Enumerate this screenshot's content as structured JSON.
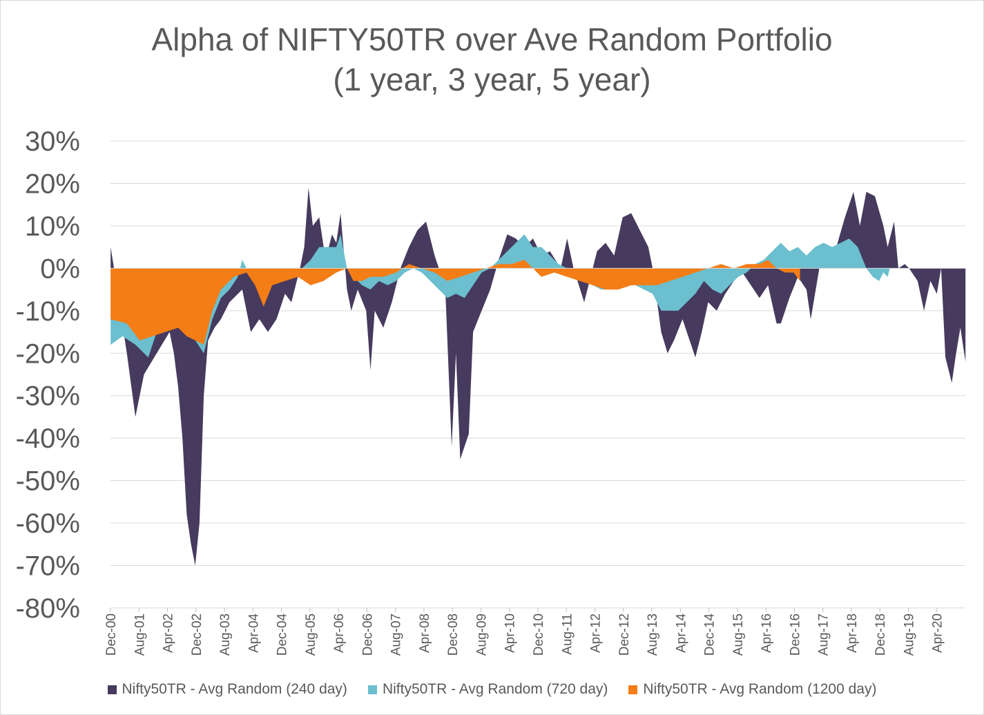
{
  "chart_data": {
    "type": "area",
    "title": "Alpha of NIFTY50TR over Ave Random Portfolio",
    "subtitle": "(1 year, 3 year, 5 year)",
    "xlabel": "",
    "ylabel": "",
    "ylim": [
      -0.8,
      0.3
    ],
    "yticks": [
      0.3,
      0.2,
      0.1,
      0.0,
      -0.1,
      -0.2,
      -0.3,
      -0.4,
      -0.5,
      -0.6,
      -0.7,
      -0.8
    ],
    "ytick_labels": [
      "30%",
      "20%",
      "10%",
      "0%",
      "-10%",
      "-20%",
      "-30%",
      "-40%",
      "-50%",
      "-60%",
      "-70%",
      "-80%"
    ],
    "x_range": [
      2000.917,
      2020.917
    ],
    "x_tick_labels": [
      "Dec-00",
      "Aug-01",
      "Apr-02",
      "Dec-02",
      "Aug-03",
      "Apr-04",
      "Dec-04",
      "Aug-05",
      "Apr-06",
      "Dec-06",
      "Aug-07",
      "Apr-08",
      "Dec-08",
      "Aug-09",
      "Apr-10",
      "Dec-10",
      "Aug-11",
      "Apr-12",
      "Dec-12",
      "Aug-13",
      "Apr-14",
      "Dec-14",
      "Aug-15",
      "Apr-16",
      "Dec-16",
      "Aug-17",
      "Apr-18",
      "Dec-18",
      "Aug-19",
      "Apr-20"
    ],
    "grid": true,
    "legend_position": "bottom",
    "series": [
      {
        "name": "Nifty50TR - Avg Random (240 day)",
        "color": "#463a5e",
        "points": [
          [
            2000.92,
            0.05
          ],
          [
            2001.0,
            0.0
          ],
          [
            2001.3,
            -0.2
          ],
          [
            2001.5,
            -0.35
          ],
          [
            2001.6,
            -0.3
          ],
          [
            2001.7,
            -0.25
          ],
          [
            2002.0,
            -0.2
          ],
          [
            2002.3,
            -0.15
          ],
          [
            2002.4,
            -0.2
          ],
          [
            2002.5,
            -0.28
          ],
          [
            2002.6,
            -0.4
          ],
          [
            2002.7,
            -0.58
          ],
          [
            2002.8,
            -0.65
          ],
          [
            2002.9,
            -0.7
          ],
          [
            2003.0,
            -0.6
          ],
          [
            2003.1,
            -0.3
          ],
          [
            2003.2,
            -0.17
          ],
          [
            2003.35,
            -0.14
          ],
          [
            2003.5,
            -0.12
          ],
          [
            2003.7,
            -0.08
          ],
          [
            2004.0,
            -0.05
          ],
          [
            2004.2,
            -0.15
          ],
          [
            2004.4,
            -0.12
          ],
          [
            2004.6,
            -0.15
          ],
          [
            2004.8,
            -0.12
          ],
          [
            2005.0,
            -0.06
          ],
          [
            2005.15,
            -0.08
          ],
          [
            2005.35,
            0.0
          ],
          [
            2005.45,
            0.05
          ],
          [
            2005.55,
            0.19
          ],
          [
            2005.65,
            0.1
          ],
          [
            2005.8,
            0.12
          ],
          [
            2005.95,
            0.02
          ],
          [
            2006.1,
            0.08
          ],
          [
            2006.2,
            0.06
          ],
          [
            2006.3,
            0.13
          ],
          [
            2006.45,
            -0.05
          ],
          [
            2006.55,
            -0.1
          ],
          [
            2006.7,
            -0.05
          ],
          [
            2006.9,
            -0.1
          ],
          [
            2007.0,
            -0.24
          ],
          [
            2007.1,
            -0.1
          ],
          [
            2007.3,
            -0.14
          ],
          [
            2007.5,
            -0.08
          ],
          [
            2007.7,
            0.0
          ],
          [
            2007.9,
            0.05
          ],
          [
            2008.1,
            0.09
          ],
          [
            2008.3,
            0.11
          ],
          [
            2008.5,
            0.03
          ],
          [
            2008.6,
            0.0
          ],
          [
            2008.75,
            -0.05
          ],
          [
            2008.9,
            -0.42
          ],
          [
            2009.0,
            -0.2
          ],
          [
            2009.1,
            -0.45
          ],
          [
            2009.3,
            -0.39
          ],
          [
            2009.4,
            -0.15
          ],
          [
            2009.6,
            -0.1
          ],
          [
            2009.8,
            -0.05
          ],
          [
            2010.0,
            0.02
          ],
          [
            2010.2,
            0.08
          ],
          [
            2010.4,
            0.07
          ],
          [
            2010.6,
            0.05
          ],
          [
            2010.8,
            0.07
          ],
          [
            2011.0,
            0.03
          ],
          [
            2011.2,
            0.04
          ],
          [
            2011.45,
            0.0
          ],
          [
            2011.6,
            0.07
          ],
          [
            2011.75,
            0.0
          ],
          [
            2012.0,
            -0.08
          ],
          [
            2012.2,
            0.0
          ],
          [
            2012.3,
            0.04
          ],
          [
            2012.5,
            0.06
          ],
          [
            2012.7,
            0.03
          ],
          [
            2012.9,
            0.12
          ],
          [
            2013.1,
            0.13
          ],
          [
            2013.3,
            0.09
          ],
          [
            2013.5,
            0.05
          ],
          [
            2013.6,
            0.0
          ],
          [
            2013.8,
            -0.15
          ],
          [
            2013.95,
            -0.2
          ],
          [
            2014.1,
            -0.17
          ],
          [
            2014.3,
            -0.12
          ],
          [
            2014.5,
            -0.18
          ],
          [
            2014.6,
            -0.21
          ],
          [
            2014.75,
            -0.15
          ],
          [
            2014.9,
            -0.08
          ],
          [
            2015.1,
            -0.1
          ],
          [
            2015.3,
            -0.06
          ],
          [
            2015.5,
            -0.03
          ],
          [
            2015.7,
            -0.01
          ],
          [
            2015.9,
            -0.04
          ],
          [
            2016.1,
            -0.07
          ],
          [
            2016.3,
            -0.04
          ],
          [
            2016.5,
            -0.13
          ],
          [
            2016.6,
            -0.13
          ],
          [
            2016.8,
            -0.07
          ],
          [
            2017.0,
            -0.02
          ],
          [
            2017.2,
            -0.05
          ],
          [
            2017.3,
            -0.12
          ],
          [
            2017.5,
            0.0
          ],
          [
            2017.7,
            0.03
          ],
          [
            2017.9,
            0.05
          ],
          [
            2018.1,
            0.12
          ],
          [
            2018.3,
            0.18
          ],
          [
            2018.45,
            0.1
          ],
          [
            2018.6,
            0.18
          ],
          [
            2018.8,
            0.17
          ],
          [
            2019.0,
            0.1
          ],
          [
            2019.1,
            0.05
          ],
          [
            2019.25,
            0.11
          ],
          [
            2019.35,
            0.0
          ],
          [
            2019.5,
            0.01
          ],
          [
            2019.6,
            0.0
          ],
          [
            2019.8,
            -0.03
          ],
          [
            2019.95,
            -0.1
          ],
          [
            2020.1,
            -0.03
          ],
          [
            2020.25,
            -0.06
          ],
          [
            2020.35,
            0.0
          ],
          [
            2020.45,
            -0.21
          ],
          [
            2020.6,
            -0.27
          ],
          [
            2020.7,
            -0.2
          ],
          [
            2020.8,
            -0.14
          ],
          [
            2020.92,
            -0.22
          ]
        ]
      },
      {
        "name": "Nifty50TR - Avg Random (720 day)",
        "color": "#6bbfce",
        "points": [
          [
            2000.92,
            -0.18
          ],
          [
            2001.2,
            -0.16
          ],
          [
            2001.5,
            -0.18
          ],
          [
            2001.8,
            -0.21
          ],
          [
            2002.0,
            -0.15
          ],
          [
            2002.3,
            -0.08
          ],
          [
            2002.5,
            -0.12
          ],
          [
            2002.7,
            -0.15
          ],
          [
            2002.9,
            -0.17
          ],
          [
            2003.1,
            -0.2
          ],
          [
            2003.3,
            -0.12
          ],
          [
            2003.5,
            -0.07
          ],
          [
            2003.7,
            -0.05
          ],
          [
            2003.9,
            -0.02
          ],
          [
            2004.0,
            0.02
          ],
          [
            2004.1,
            0.0
          ],
          [
            2004.3,
            -0.02
          ],
          [
            2004.5,
            -0.02
          ],
          [
            2004.7,
            -0.03
          ],
          [
            2005.0,
            -0.03
          ],
          [
            2005.2,
            0.0
          ],
          [
            2005.4,
            0.0
          ],
          [
            2005.6,
            0.02
          ],
          [
            2005.8,
            0.05
          ],
          [
            2006.0,
            0.05
          ],
          [
            2006.2,
            0.05
          ],
          [
            2006.3,
            0.08
          ],
          [
            2006.45,
            0.0
          ],
          [
            2006.6,
            -0.02
          ],
          [
            2006.8,
            -0.04
          ],
          [
            2007.0,
            -0.05
          ],
          [
            2007.2,
            -0.03
          ],
          [
            2007.4,
            -0.04
          ],
          [
            2007.6,
            -0.03
          ],
          [
            2007.8,
            -0.01
          ],
          [
            2008.0,
            0.0
          ],
          [
            2008.2,
            -0.01
          ],
          [
            2008.4,
            -0.03
          ],
          [
            2008.6,
            -0.05
          ],
          [
            2008.8,
            -0.07
          ],
          [
            2009.0,
            -0.06
          ],
          [
            2009.2,
            -0.07
          ],
          [
            2009.4,
            -0.04
          ],
          [
            2009.6,
            -0.01
          ],
          [
            2009.8,
            0.0
          ],
          [
            2010.0,
            0.02
          ],
          [
            2010.2,
            0.04
          ],
          [
            2010.4,
            0.06
          ],
          [
            2010.6,
            0.08
          ],
          [
            2010.8,
            0.05
          ],
          [
            2011.0,
            0.05
          ],
          [
            2011.2,
            0.03
          ],
          [
            2011.4,
            0.01
          ],
          [
            2011.6,
            0.0
          ],
          [
            2011.8,
            -0.02
          ],
          [
            2012.0,
            -0.03
          ],
          [
            2012.2,
            -0.04
          ],
          [
            2012.4,
            -0.05
          ],
          [
            2012.6,
            -0.05
          ],
          [
            2012.8,
            -0.04
          ],
          [
            2013.0,
            -0.04
          ],
          [
            2013.2,
            -0.04
          ],
          [
            2013.4,
            -0.05
          ],
          [
            2013.6,
            -0.06
          ],
          [
            2013.8,
            -0.1
          ],
          [
            2014.0,
            -0.1
          ],
          [
            2014.2,
            -0.1
          ],
          [
            2014.4,
            -0.08
          ],
          [
            2014.6,
            -0.06
          ],
          [
            2014.8,
            -0.03
          ],
          [
            2015.0,
            -0.05
          ],
          [
            2015.2,
            -0.06
          ],
          [
            2015.4,
            -0.04
          ],
          [
            2015.6,
            -0.02
          ],
          [
            2015.8,
            -0.01
          ],
          [
            2016.0,
            0.01
          ],
          [
            2016.2,
            0.02
          ],
          [
            2016.4,
            0.04
          ],
          [
            2016.6,
            0.06
          ],
          [
            2016.8,
            0.04
          ],
          [
            2017.0,
            0.05
          ],
          [
            2017.2,
            0.03
          ],
          [
            2017.4,
            0.05
          ],
          [
            2017.6,
            0.06
          ],
          [
            2017.8,
            0.05
          ],
          [
            2018.0,
            0.06
          ],
          [
            2018.2,
            0.07
          ],
          [
            2018.4,
            0.05
          ],
          [
            2018.6,
            0.0
          ],
          [
            2018.75,
            -0.02
          ],
          [
            2018.9,
            -0.03
          ],
          [
            2019.0,
            -0.01
          ],
          [
            2019.1,
            -0.02
          ],
          [
            2019.15,
            0.0
          ]
        ]
      },
      {
        "name": "Nifty50TR - Avg Random (1200 day)",
        "color": "#f47d16",
        "points": [
          [
            2000.92,
            -0.12
          ],
          [
            2001.3,
            -0.13
          ],
          [
            2001.6,
            -0.17
          ],
          [
            2001.9,
            -0.16
          ],
          [
            2002.2,
            -0.15
          ],
          [
            2002.5,
            -0.14
          ],
          [
            2002.7,
            -0.16
          ],
          [
            2002.9,
            -0.17
          ],
          [
            2003.1,
            -0.18
          ],
          [
            2003.3,
            -0.1
          ],
          [
            2003.5,
            -0.05
          ],
          [
            2003.8,
            -0.02
          ],
          [
            2004.1,
            -0.01
          ],
          [
            2004.3,
            -0.04
          ],
          [
            2004.5,
            -0.09
          ],
          [
            2004.7,
            -0.04
          ],
          [
            2005.0,
            -0.03
          ],
          [
            2005.3,
            -0.02
          ],
          [
            2005.6,
            -0.04
          ],
          [
            2005.9,
            -0.03
          ],
          [
            2006.2,
            -0.01
          ],
          [
            2006.45,
            0.0
          ],
          [
            2006.6,
            -0.03
          ],
          [
            2006.8,
            -0.03
          ],
          [
            2007.0,
            -0.02
          ],
          [
            2007.3,
            -0.02
          ],
          [
            2007.6,
            -0.01
          ],
          [
            2007.9,
            0.01
          ],
          [
            2008.2,
            0.0
          ],
          [
            2008.5,
            -0.01
          ],
          [
            2008.8,
            -0.03
          ],
          [
            2009.1,
            -0.02
          ],
          [
            2009.4,
            -0.01
          ],
          [
            2009.7,
            0.0
          ],
          [
            2010.0,
            0.01
          ],
          [
            2010.3,
            0.01
          ],
          [
            2010.6,
            0.02
          ],
          [
            2010.8,
            0.0
          ],
          [
            2011.0,
            -0.02
          ],
          [
            2011.3,
            -0.01
          ],
          [
            2011.6,
            -0.02
          ],
          [
            2011.9,
            -0.03
          ],
          [
            2012.2,
            -0.04
          ],
          [
            2012.5,
            -0.05
          ],
          [
            2012.8,
            -0.05
          ],
          [
            2013.1,
            -0.04
          ],
          [
            2013.4,
            -0.04
          ],
          [
            2013.7,
            -0.04
          ],
          [
            2014.0,
            -0.03
          ],
          [
            2014.3,
            -0.02
          ],
          [
            2014.6,
            -0.01
          ],
          [
            2014.9,
            0.0
          ],
          [
            2015.2,
            0.01
          ],
          [
            2015.5,
            0.0
          ],
          [
            2015.8,
            0.01
          ],
          [
            2016.1,
            0.01
          ],
          [
            2016.3,
            0.02
          ],
          [
            2016.5,
            0.0
          ],
          [
            2016.7,
            -0.01
          ],
          [
            2016.9,
            -0.01
          ],
          [
            2017.05,
            -0.03
          ]
        ]
      }
    ]
  }
}
